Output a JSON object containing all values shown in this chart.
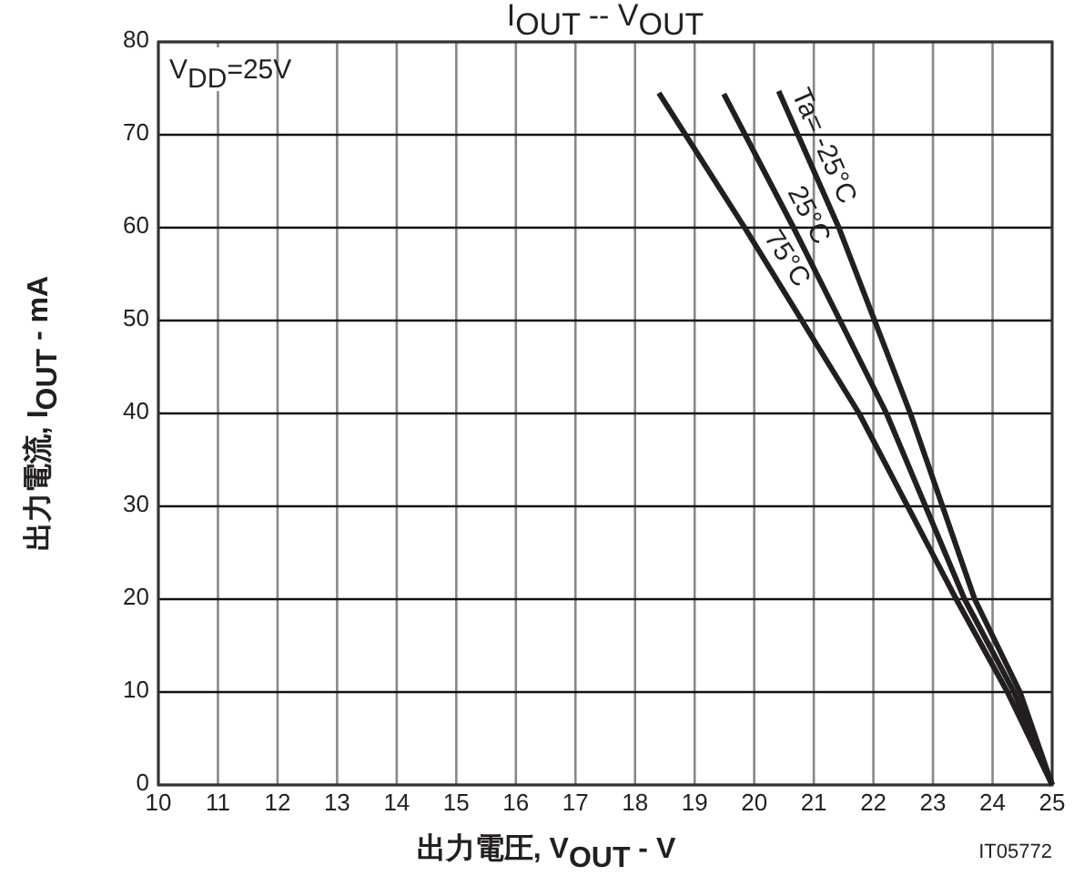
{
  "chart_data": {
    "type": "line",
    "title": "I$_{OUT}$ -- V$_{OUT}$",
    "xlabel": "出力電圧, V$_{OUT}$ - V",
    "ylabel": "出力電流, I$_{OUT}$ - mA",
    "annotations": [
      "V$_{DD}$=25V",
      "IT05772"
    ],
    "xlim": [
      10,
      25
    ],
    "xticks": [
      10,
      11,
      12,
      13,
      14,
      15,
      16,
      17,
      18,
      19,
      20,
      21,
      22,
      23,
      24,
      25
    ],
    "ylim": [
      0,
      80
    ],
    "yticks": [
      0,
      10,
      20,
      30,
      40,
      50,
      60,
      70,
      80
    ],
    "grid": true,
    "line_style": "solid",
    "marker": "none",
    "series": [
      {
        "name": "Ta= -25°C",
        "color": "#231f20",
        "x": [
          20.41,
          21.42,
          22.62,
          23.7,
          24.46,
          25
        ],
        "values": [
          74.7,
          60,
          40,
          20,
          10,
          0
        ]
      },
      {
        "name": "25°C",
        "color": "#231f20",
        "x": [
          19.49,
          20.66,
          22.22,
          23.53,
          24.36,
          25
        ],
        "values": [
          74.4,
          60,
          40,
          20,
          10,
          0
        ]
      },
      {
        "name": "75°C",
        "color": "#231f20",
        "x": [
          18.4,
          19.84,
          21.76,
          23.39,
          24.25,
          25
        ],
        "values": [
          74.5,
          60,
          40,
          20,
          10,
          0
        ]
      }
    ]
  }
}
